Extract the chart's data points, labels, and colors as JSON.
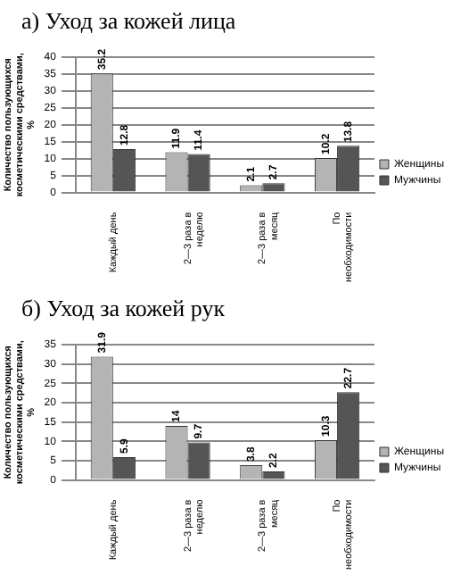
{
  "chart_data": [
    {
      "type": "bar",
      "title": "а) Уход за кожей лица",
      "ylabel": "Количество пользующихся косметическими средствами, %",
      "categories": [
        "Каждый день",
        "2—3 раза в неделю",
        "2—3 раза в месяц",
        "По необходимости"
      ],
      "series": [
        {
          "name": "Женщины",
          "color": "#b4b4b4",
          "values": [
            35.2,
            11.9,
            2.1,
            10.2
          ]
        },
        {
          "name": "Мужчины",
          "color": "#555555",
          "values": [
            12.8,
            11.4,
            2.7,
            13.8
          ]
        }
      ],
      "ylim": [
        0,
        40
      ],
      "yticks": [
        0,
        5,
        10,
        15,
        20,
        25,
        30,
        35,
        40
      ],
      "grid": "y",
      "legend": "right",
      "data_labels": true
    },
    {
      "type": "bar",
      "title": "б) Уход за кожей рук",
      "ylabel": "Количество пользующихся косметическими средствами, %",
      "categories": [
        "Каждый день",
        "2—3 раза в неделю",
        "2—3 раза в месяц",
        "По необходимости"
      ],
      "series": [
        {
          "name": "Женщины",
          "color": "#b4b4b4",
          "values": [
            31.9,
            14,
            3.8,
            10.3
          ]
        },
        {
          "name": "Мужчины",
          "color": "#555555",
          "values": [
            5.9,
            9.7,
            2.2,
            22.7
          ]
        }
      ],
      "ylim": [
        0,
        35
      ],
      "yticks": [
        0,
        5,
        10,
        15,
        20,
        25,
        30,
        35
      ],
      "grid": "y",
      "legend": "right",
      "data_labels": true
    }
  ]
}
